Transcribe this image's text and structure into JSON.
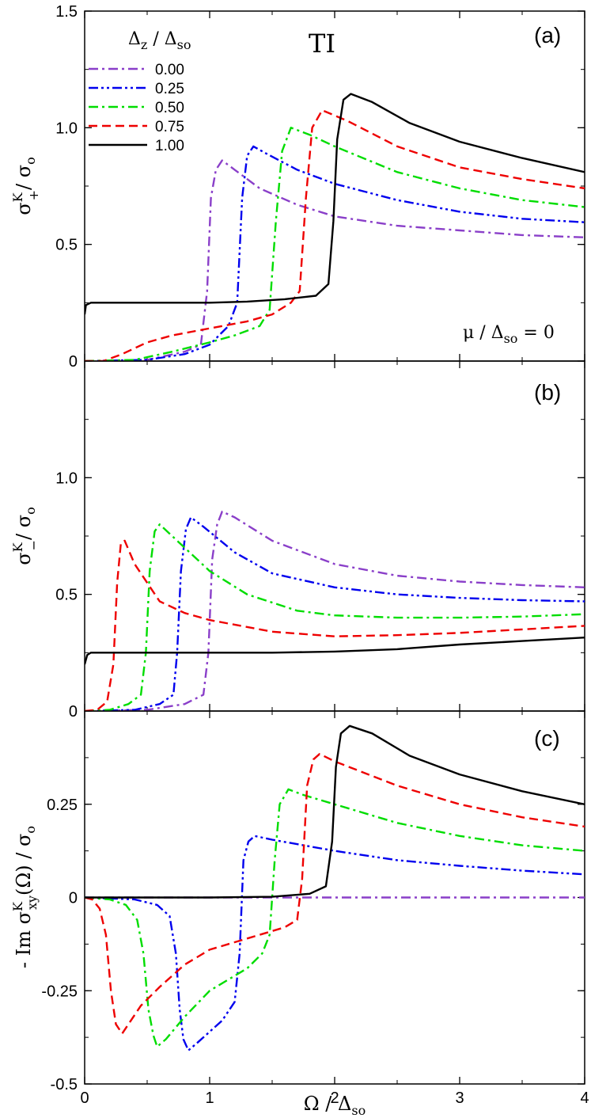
{
  "chart_data": [
    {
      "type": "line",
      "panel_label": "(a)",
      "annotation": "TI",
      "condition": "μ / Δso = 0",
      "ylabel": "σ+K/ σo",
      "xlim": [
        0,
        4
      ],
      "ylim": [
        0,
        1.5
      ],
      "x_ticks": [
        0,
        1,
        2,
        3,
        4
      ],
      "y_ticks": [
        "0",
        "0.5",
        "1.0",
        "1.5"
      ],
      "legend": {
        "title": "Δz / Δso",
        "placement": "top-left"
      },
      "series": [
        {
          "name": "0.00",
          "color": "#8a3fc9",
          "dash": "dash-dot",
          "points": [
            [
              0,
              0
            ],
            [
              0.5,
              0.005
            ],
            [
              0.8,
              0.04
            ],
            [
              0.93,
              0.07
            ],
            [
              0.98,
              0.3
            ],
            [
              1.01,
              0.7
            ],
            [
              1.05,
              0.82
            ],
            [
              1.1,
              0.86
            ],
            [
              1.2,
              0.82
            ],
            [
              1.4,
              0.74
            ],
            [
              1.7,
              0.67
            ],
            [
              2.0,
              0.62
            ],
            [
              2.5,
              0.58
            ],
            [
              3.0,
              0.56
            ],
            [
              3.5,
              0.54
            ],
            [
              4.0,
              0.53
            ]
          ]
        },
        {
          "name": "0.25",
          "color": "#0000ee",
          "dash": "dash-dot-dot",
          "points": [
            [
              0,
              0
            ],
            [
              0.5,
              0.005
            ],
            [
              0.8,
              0.03
            ],
            [
              1.0,
              0.07
            ],
            [
              1.15,
              0.15
            ],
            [
              1.22,
              0.25
            ],
            [
              1.26,
              0.7
            ],
            [
              1.3,
              0.88
            ],
            [
              1.35,
              0.92
            ],
            [
              1.45,
              0.89
            ],
            [
              1.7,
              0.82
            ],
            [
              2.0,
              0.76
            ],
            [
              2.5,
              0.69
            ],
            [
              3.0,
              0.64
            ],
            [
              3.5,
              0.61
            ],
            [
              4.0,
              0.595
            ]
          ]
        },
        {
          "name": "0.50",
          "color": "#00dd00",
          "dash": "dash-dot",
          "points": [
            [
              0,
              0
            ],
            [
              0.4,
              0.005
            ],
            [
              0.7,
              0.04
            ],
            [
              1.0,
              0.08
            ],
            [
              1.2,
              0.11
            ],
            [
              1.4,
              0.15
            ],
            [
              1.48,
              0.22
            ],
            [
              1.53,
              0.6
            ],
            [
              1.58,
              0.9
            ],
            [
              1.65,
              1.0
            ],
            [
              1.8,
              0.97
            ],
            [
              2.0,
              0.92
            ],
            [
              2.5,
              0.81
            ],
            [
              3.0,
              0.74
            ],
            [
              3.5,
              0.69
            ],
            [
              4.0,
              0.66
            ]
          ]
        },
        {
          "name": "0.75",
          "color": "#ee0000",
          "dash": "dash",
          "points": [
            [
              0,
              0
            ],
            [
              0.15,
              0.0
            ],
            [
              0.3,
              0.03
            ],
            [
              0.5,
              0.08
            ],
            [
              0.7,
              0.11
            ],
            [
              1.0,
              0.14
            ],
            [
              1.3,
              0.17
            ],
            [
              1.5,
              0.2
            ],
            [
              1.65,
              0.25
            ],
            [
              1.72,
              0.3
            ],
            [
              1.77,
              0.7
            ],
            [
              1.82,
              1.0
            ],
            [
              1.9,
              1.075
            ],
            [
              2.1,
              1.03
            ],
            [
              2.5,
              0.92
            ],
            [
              3.0,
              0.83
            ],
            [
              3.5,
              0.78
            ],
            [
              4.0,
              0.74
            ]
          ]
        },
        {
          "name": "1.00",
          "color": "#000000",
          "dash": "solid",
          "points": [
            [
              0,
              0.2
            ],
            [
              0.01,
              0.24
            ],
            [
              0.05,
              0.25
            ],
            [
              0.5,
              0.25
            ],
            [
              1.0,
              0.25
            ],
            [
              1.3,
              0.255
            ],
            [
              1.6,
              0.265
            ],
            [
              1.85,
              0.28
            ],
            [
              1.95,
              0.33
            ],
            [
              1.99,
              0.6
            ],
            [
              2.02,
              0.95
            ],
            [
              2.07,
              1.12
            ],
            [
              2.13,
              1.145
            ],
            [
              2.3,
              1.11
            ],
            [
              2.6,
              1.02
            ],
            [
              3.0,
              0.94
            ],
            [
              3.5,
              0.87
            ],
            [
              4.0,
              0.81
            ]
          ]
        }
      ]
    },
    {
      "type": "line",
      "panel_label": "(b)",
      "ylabel": "σ−K/ σo",
      "xlim": [
        0,
        4
      ],
      "ylim": [
        0,
        1.5
      ],
      "x_ticks": [
        0,
        1,
        2,
        3,
        4
      ],
      "y_ticks": [
        "0",
        "0.5",
        "1.0"
      ],
      "series": [
        {
          "name": "0.00",
          "color": "#8a3fc9",
          "dash": "dash-dot",
          "points": [
            [
              0,
              0
            ],
            [
              0.5,
              0.005
            ],
            [
              0.8,
              0.03
            ],
            [
              0.95,
              0.07
            ],
            [
              0.99,
              0.25
            ],
            [
              1.02,
              0.65
            ],
            [
              1.06,
              0.8
            ],
            [
              1.1,
              0.855
            ],
            [
              1.2,
              0.83
            ],
            [
              1.5,
              0.73
            ],
            [
              2.0,
              0.63
            ],
            [
              2.5,
              0.58
            ],
            [
              3.0,
              0.555
            ],
            [
              3.5,
              0.54
            ],
            [
              4.0,
              0.53
            ]
          ]
        },
        {
          "name": "0.25",
          "color": "#0000ee",
          "dash": "dash-dot-dot",
          "points": [
            [
              0,
              0
            ],
            [
              0.4,
              0.005
            ],
            [
              0.6,
              0.03
            ],
            [
              0.71,
              0.07
            ],
            [
              0.74,
              0.25
            ],
            [
              0.77,
              0.6
            ],
            [
              0.81,
              0.78
            ],
            [
              0.85,
              0.83
            ],
            [
              0.95,
              0.79
            ],
            [
              1.2,
              0.68
            ],
            [
              1.5,
              0.59
            ],
            [
              2.0,
              0.53
            ],
            [
              2.5,
              0.5
            ],
            [
              3.0,
              0.485
            ],
            [
              3.5,
              0.475
            ],
            [
              4.0,
              0.47
            ]
          ]
        },
        {
          "name": "0.50",
          "color": "#00dd00",
          "dash": "dash-dot",
          "points": [
            [
              0,
              0
            ],
            [
              0.2,
              0.005
            ],
            [
              0.35,
              0.03
            ],
            [
              0.45,
              0.07
            ],
            [
              0.49,
              0.25
            ],
            [
              0.52,
              0.6
            ],
            [
              0.56,
              0.77
            ],
            [
              0.6,
              0.8
            ],
            [
              0.7,
              0.75
            ],
            [
              1.0,
              0.6
            ],
            [
              1.3,
              0.5
            ],
            [
              1.7,
              0.43
            ],
            [
              2.0,
              0.41
            ],
            [
              2.5,
              0.4
            ],
            [
              3.0,
              0.4
            ],
            [
              3.5,
              0.405
            ],
            [
              4.0,
              0.415
            ]
          ]
        },
        {
          "name": "0.75",
          "color": "#ee0000",
          "dash": "dash",
          "points": [
            [
              0,
              0
            ],
            [
              0.1,
              0.005
            ],
            [
              0.18,
              0.04
            ],
            [
              0.23,
              0.2
            ],
            [
              0.26,
              0.55
            ],
            [
              0.29,
              0.72
            ],
            [
              0.32,
              0.73
            ],
            [
              0.4,
              0.63
            ],
            [
              0.6,
              0.47
            ],
            [
              0.8,
              0.42
            ],
            [
              1.0,
              0.39
            ],
            [
              1.5,
              0.34
            ],
            [
              2.0,
              0.32
            ],
            [
              2.5,
              0.325
            ],
            [
              3.0,
              0.335
            ],
            [
              3.5,
              0.35
            ],
            [
              4.0,
              0.365
            ]
          ]
        },
        {
          "name": "1.00",
          "color": "#000000",
          "dash": "solid",
          "points": [
            [
              0,
              0.2
            ],
            [
              0.02,
              0.24
            ],
            [
              0.05,
              0.25
            ],
            [
              0.5,
              0.25
            ],
            [
              1.0,
              0.25
            ],
            [
              1.5,
              0.25
            ],
            [
              2.0,
              0.255
            ],
            [
              2.5,
              0.265
            ],
            [
              3.0,
              0.285
            ],
            [
              3.5,
              0.3
            ],
            [
              4.0,
              0.315
            ]
          ]
        }
      ]
    },
    {
      "type": "line",
      "panel_label": "(c)",
      "ylabel": "- Im σxyK(Ω) / σo",
      "xlabel": "Ω / Δso",
      "xlim": [
        0,
        4
      ],
      "ylim": [
        -0.5,
        0.5
      ],
      "x_ticks": [
        0,
        1,
        2,
        3,
        4
      ],
      "y_ticks": [
        "-0.5",
        "-0.25",
        "0",
        "0.25"
      ],
      "series": [
        {
          "name": "0.00",
          "color": "#8a3fc9",
          "dash": "dash-dot",
          "points": [
            [
              0,
              0
            ],
            [
              4.0,
              0
            ]
          ]
        },
        {
          "name": "0.25",
          "color": "#0000ee",
          "dash": "dash-dot-dot",
          "points": [
            [
              0,
              0
            ],
            [
              0.4,
              -0.005
            ],
            [
              0.58,
              -0.02
            ],
            [
              0.68,
              -0.05
            ],
            [
              0.73,
              -0.15
            ],
            [
              0.76,
              -0.3
            ],
            [
              0.79,
              -0.38
            ],
            [
              0.83,
              -0.41
            ],
            [
              0.9,
              -0.39
            ],
            [
              1.1,
              -0.33
            ],
            [
              1.2,
              -0.28
            ],
            [
              1.24,
              -0.15
            ],
            [
              1.27,
              0.1
            ],
            [
              1.31,
              0.15
            ],
            [
              1.36,
              0.165
            ],
            [
              1.5,
              0.155
            ],
            [
              2.0,
              0.125
            ],
            [
              2.5,
              0.1
            ],
            [
              3.0,
              0.085
            ],
            [
              3.5,
              0.072
            ],
            [
              4.0,
              0.062
            ]
          ]
        },
        {
          "name": "0.50",
          "color": "#00dd00",
          "dash": "dash-dot",
          "points": [
            [
              0,
              0
            ],
            [
              0.2,
              -0.005
            ],
            [
              0.33,
              -0.02
            ],
            [
              0.42,
              -0.06
            ],
            [
              0.47,
              -0.15
            ],
            [
              0.51,
              -0.3
            ],
            [
              0.55,
              -0.37
            ],
            [
              0.58,
              -0.4
            ],
            [
              0.65,
              -0.38
            ],
            [
              0.8,
              -0.32
            ],
            [
              1.0,
              -0.25
            ],
            [
              1.3,
              -0.19
            ],
            [
              1.42,
              -0.15
            ],
            [
              1.48,
              -0.1
            ],
            [
              1.52,
              0.1
            ],
            [
              1.56,
              0.25
            ],
            [
              1.63,
              0.29
            ],
            [
              1.75,
              0.275
            ],
            [
              2.0,
              0.25
            ],
            [
              2.5,
              0.2
            ],
            [
              3.0,
              0.165
            ],
            [
              3.5,
              0.14
            ],
            [
              4.0,
              0.125
            ]
          ]
        },
        {
          "name": "0.75",
          "color": "#ee0000",
          "dash": "dash",
          "points": [
            [
              0,
              0
            ],
            [
              0.06,
              -0.005
            ],
            [
              0.12,
              -0.03
            ],
            [
              0.17,
              -0.1
            ],
            [
              0.21,
              -0.25
            ],
            [
              0.25,
              -0.34
            ],
            [
              0.3,
              -0.365
            ],
            [
              0.35,
              -0.34
            ],
            [
              0.45,
              -0.29
            ],
            [
              0.6,
              -0.24
            ],
            [
              0.8,
              -0.18
            ],
            [
              1.0,
              -0.14
            ],
            [
              1.3,
              -0.11
            ],
            [
              1.6,
              -0.08
            ],
            [
              1.7,
              -0.06
            ],
            [
              1.74,
              0.05
            ],
            [
              1.78,
              0.3
            ],
            [
              1.83,
              0.37
            ],
            [
              1.88,
              0.385
            ],
            [
              2.0,
              0.365
            ],
            [
              2.5,
              0.3
            ],
            [
              3.0,
              0.25
            ],
            [
              3.5,
              0.215
            ],
            [
              4.0,
              0.19
            ]
          ]
        },
        {
          "name": "1.00",
          "color": "#000000",
          "dash": "solid",
          "points": [
            [
              0,
              0
            ],
            [
              1.0,
              0.0
            ],
            [
              1.5,
              0.002
            ],
            [
              1.8,
              0.01
            ],
            [
              1.93,
              0.03
            ],
            [
              1.98,
              0.15
            ],
            [
              2.01,
              0.35
            ],
            [
              2.05,
              0.44
            ],
            [
              2.12,
              0.46
            ],
            [
              2.3,
              0.44
            ],
            [
              2.6,
              0.38
            ],
            [
              3.0,
              0.33
            ],
            [
              3.5,
              0.285
            ],
            [
              4.0,
              0.25
            ]
          ]
        }
      ]
    }
  ]
}
